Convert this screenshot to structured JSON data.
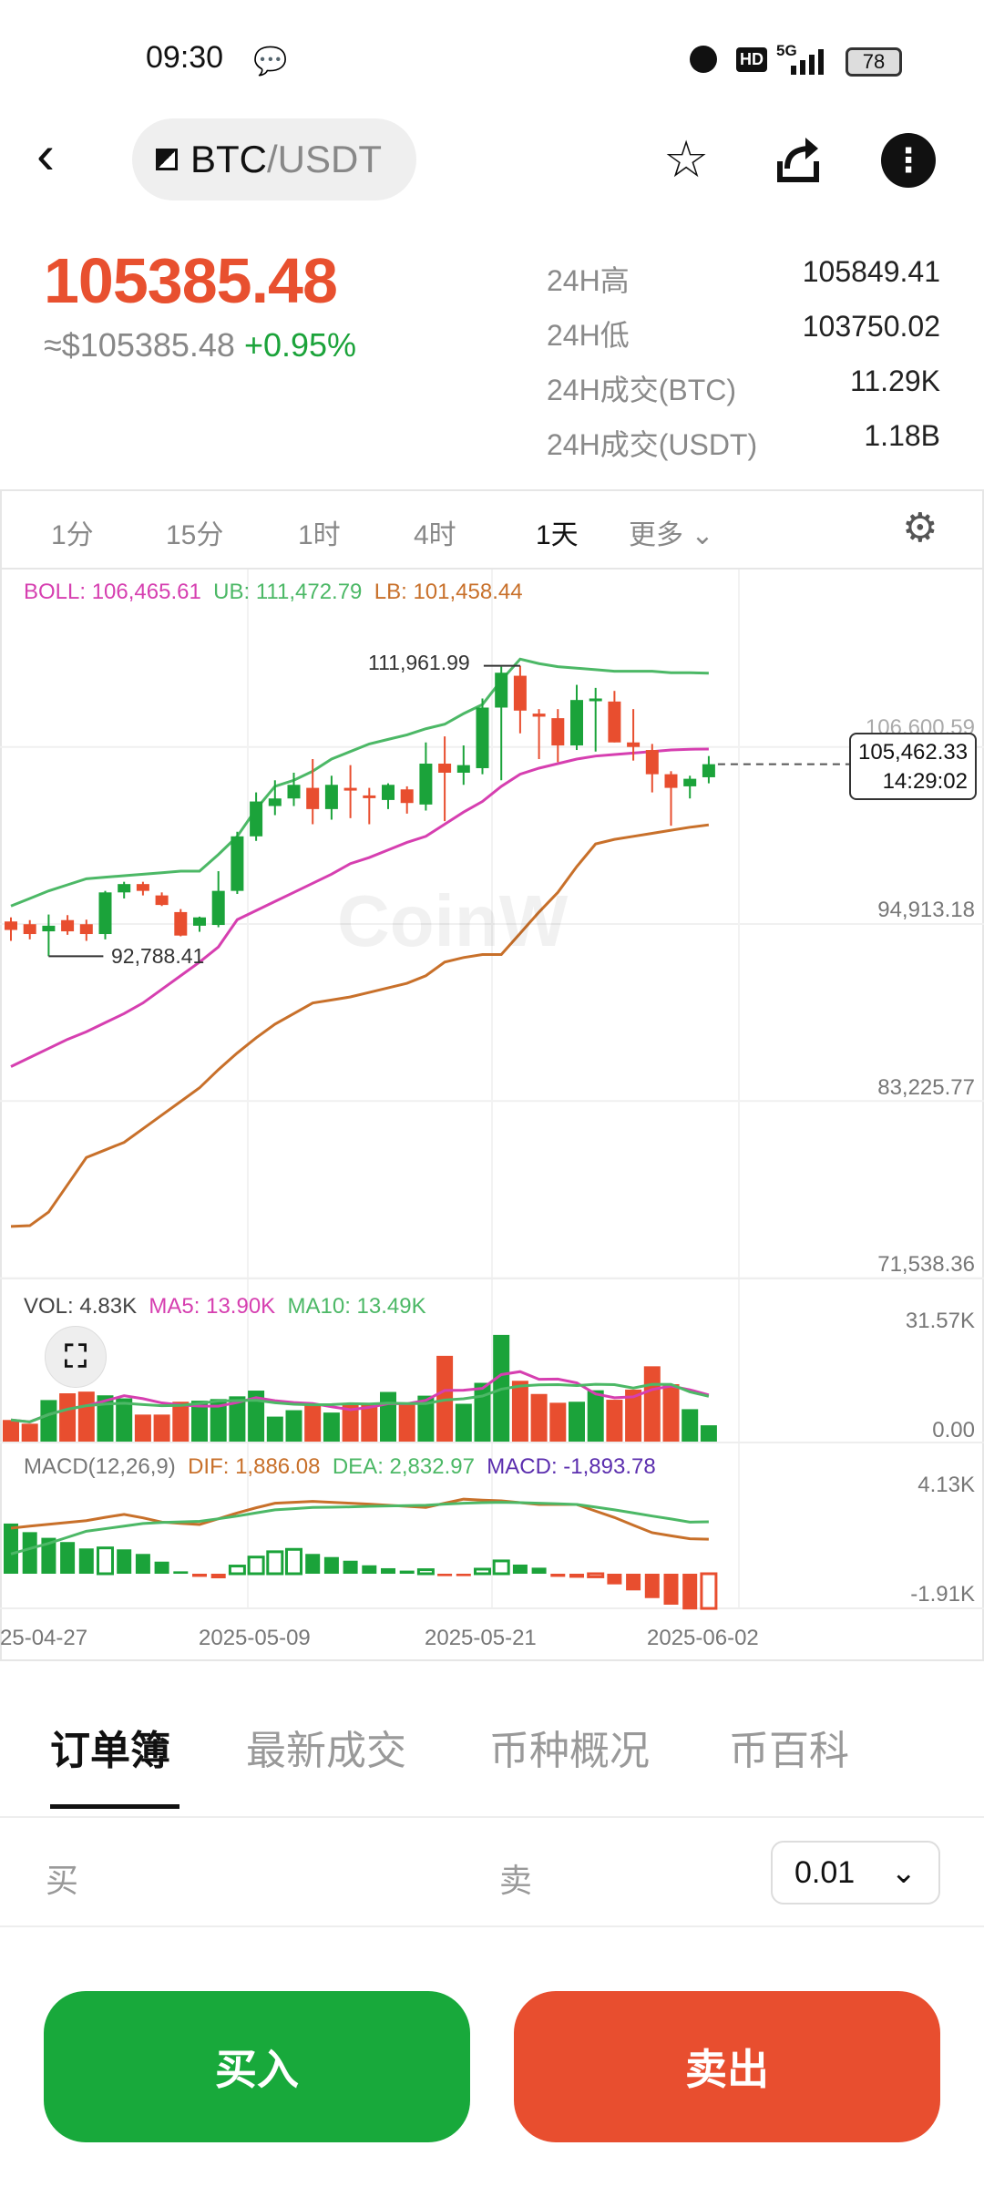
{
  "status_bar": {
    "time": "09:30",
    "battery": "78",
    "network": "5G",
    "hd": "HD"
  },
  "header": {
    "base": "BTC",
    "quote": "/USDT"
  },
  "ticker": {
    "price": "105385.48",
    "usd_price": "≈$105385.48",
    "change": "+0.95%",
    "stats": [
      {
        "label": "24H高",
        "value": "105849.41"
      },
      {
        "label": "24H低",
        "value": "103750.02"
      },
      {
        "label": "24H成交(BTC)",
        "value": "11.29K"
      },
      {
        "label": "24H成交(USDT)",
        "value": "1.18B"
      }
    ]
  },
  "timeframes": [
    "1分",
    "15分",
    "1时",
    "4时",
    "1天"
  ],
  "timeframe_active": "1天",
  "more_label": "更多",
  "colors": {
    "up": "#1ba33a",
    "down": "#e84e2f",
    "boll": "#d63fb0",
    "ub": "#4cb866",
    "lb": "#c8702a",
    "macd": "#5b2eae"
  },
  "watermark": "CoinW",
  "chart_data": {
    "type": "candlestick",
    "boll_legend": {
      "boll": "BOLL: 106,465.61",
      "ub": "UB: 111,472.79",
      "lb": "LB: 101,458.44"
    },
    "vol_legend": {
      "vol": "VOL: 4.83K",
      "ma5": "MA5: 13.90K",
      "ma10": "MA10: 13.49K"
    },
    "macd_legend": {
      "name": "MACD(12,26,9)",
      "dif": "DIF: 1,886.08",
      "dea": "DEA: 2,832.97",
      "macd": "MACD: -1,893.78"
    },
    "price_ticks": [
      "106,600.59",
      "94,913.18",
      "83,225.77",
      "71,538.36"
    ],
    "price_tick_values": [
      106600.59,
      94913.18,
      83225.77,
      71538.36
    ],
    "vol_ticks": [
      "31.57K",
      "0.00"
    ],
    "macd_ticks": [
      "4.13K",
      "-1.91K"
    ],
    "x_ticks": [
      "25-04-27",
      "2025-05-09",
      "2025-05-21",
      "2025-06-02"
    ],
    "max_label": "111,961.99",
    "min_label": "92,788.41",
    "last_price_label": "105,462.33",
    "countdown": "14:29:02",
    "last_price": 105462.33,
    "ohlc": [
      [
        95080,
        95350,
        93800,
        94520
      ],
      [
        94900,
        95170,
        93900,
        94250
      ],
      [
        94430,
        95540,
        92788.41,
        94800
      ],
      [
        95170,
        95500,
        94200,
        94430
      ],
      [
        94900,
        95200,
        93800,
        94250
      ],
      [
        94250,
        97100,
        93900,
        97000
      ],
      [
        97000,
        97700,
        96600,
        97550
      ],
      [
        97550,
        97700,
        96800,
        97100
      ],
      [
        96800,
        97000,
        96100,
        96170
      ],
      [
        95700,
        95900,
        94100,
        94150
      ],
      [
        94800,
        95400,
        94400,
        95350
      ],
      [
        94850,
        98400,
        94700,
        97100
      ],
      [
        97100,
        101000,
        96900,
        100700
      ],
      [
        100700,
        103600,
        100400,
        103000
      ],
      [
        102700,
        104400,
        102100,
        103200
      ],
      [
        103200,
        104900,
        102700,
        104100
      ],
      [
        103900,
        105800,
        101500,
        102500
      ],
      [
        102500,
        104700,
        101800,
        104100
      ],
      [
        103900,
        105400,
        101900,
        103800
      ],
      [
        103400,
        103900,
        101500,
        103350
      ],
      [
        103100,
        104200,
        102500,
        104100
      ],
      [
        103800,
        104000,
        102200,
        102900
      ],
      [
        102800,
        106900,
        102400,
        105500
      ],
      [
        105500,
        107300,
        101700,
        104900
      ],
      [
        104900,
        106700,
        104100,
        105400
      ],
      [
        105200,
        109800,
        104800,
        109200
      ],
      [
        109200,
        111900,
        104400,
        111500
      ],
      [
        111300,
        111961.99,
        107500,
        109000
      ],
      [
        108800,
        109100,
        105800,
        108600
      ],
      [
        108500,
        109100,
        105600,
        106700
      ],
      [
        106700,
        110700,
        106400,
        109700
      ],
      [
        109700,
        110500,
        106300,
        109800
      ],
      [
        109600,
        110300,
        106900,
        106900
      ],
      [
        106900,
        109100,
        105700,
        106600
      ],
      [
        106400,
        106800,
        103600,
        104800
      ],
      [
        104800,
        105000,
        101400,
        103900
      ],
      [
        104000,
        104700,
        103200,
        104500
      ],
      [
        104600,
        106000,
        104200,
        105462.33
      ]
    ],
    "boll_ub": [
      96100,
      96600,
      97100,
      97500,
      97900,
      98000,
      98100,
      98200,
      98300,
      98400,
      98400,
      99500,
      100700,
      102500,
      104000,
      104400,
      105000,
      105800,
      106300,
      106800,
      107100,
      107400,
      107800,
      108100,
      108800,
      109400,
      111000,
      112400,
      112100,
      111900,
      111800,
      111700,
      111600,
      111600,
      111600,
      111500,
      111500,
      111472.79
    ],
    "boll_mid": [
      85500,
      86100,
      86700,
      87300,
      87800,
      88400,
      89000,
      89700,
      90600,
      91500,
      92400,
      93400,
      95200,
      95800,
      96400,
      97000,
      97600,
      98200,
      98900,
      99300,
      99800,
      100300,
      100700,
      101500,
      102300,
      103000,
      104000,
      104800,
      105200,
      105500,
      105800,
      106000,
      106100,
      106200,
      106300,
      106400,
      106450,
      106465.61
    ],
    "boll_lb": [
      74950,
      75000,
      75900,
      77700,
      79500,
      80000,
      80500,
      81400,
      82300,
      83200,
      84100,
      85300,
      86400,
      87400,
      88300,
      89000,
      89700,
      89900,
      90100,
      90400,
      90700,
      91000,
      91500,
      92400,
      92700,
      92900,
      92900,
      94300,
      95700,
      97000,
      98700,
      100200,
      100500,
      100700,
      100900,
      101100,
      101300,
      101458.44
    ],
    "volume_k": [
      6.4,
      5.3,
      12.3,
      14.3,
      14.8,
      13.7,
      12.8,
      8.0,
      8.0,
      11.8,
      12.1,
      12.6,
      13.4,
      15.1,
      7.4,
      9.3,
      11.2,
      8.6,
      10.8,
      10.8,
      14.7,
      11.2,
      13.6,
      25.4,
      11.2,
      17.4,
      31.6,
      18.0,
      14.1,
      11.5,
      11.8,
      15.2,
      12.4,
      15.4,
      22.3,
      17.0,
      9.6,
      4.83
    ],
    "macd_hist": [
      2740,
      2270,
      1960,
      1730,
      1380,
      1410,
      1330,
      1080,
      660,
      130,
      -170,
      -250,
      420,
      910,
      1200,
      1330,
      1080,
      910,
      710,
      460,
      300,
      170,
      220,
      -130,
      -130,
      250,
      700,
      500,
      330,
      -170,
      -220,
      -170,
      -580,
      -910,
      -1330,
      -1690,
      -1950,
      -1893.78
    ],
    "dif": [
      2490,
      2600,
      2700,
      2800,
      2900,
      3080,
      3240,
      3050,
      2820,
      2750,
      2690,
      3000,
      3320,
      3600,
      3850,
      3900,
      3950,
      3900,
      3850,
      3800,
      3740,
      3680,
      3620,
      3850,
      4070,
      4020,
      3980,
      3880,
      3780,
      3780,
      3780,
      3420,
      3070,
      2650,
      2240,
      2070,
      1910,
      1886.08
    ],
    "dea": [
      1080,
      1370,
      1660,
      1990,
      2320,
      2460,
      2600,
      2740,
      2800,
      2830,
      2860,
      3000,
      3150,
      3320,
      3490,
      3550,
      3620,
      3630,
      3650,
      3680,
      3700,
      3720,
      3740,
      3800,
      3850,
      3880,
      3900,
      3880,
      3850,
      3820,
      3780,
      3640,
      3490,
      3320,
      3150,
      2990,
      2820,
      2832.97
    ]
  },
  "bottom_tabs": [
    "订单簿",
    "最新成交",
    "币种概况",
    "币百科"
  ],
  "orderbook": {
    "buy": "买",
    "sell": "卖",
    "precision": "0.01"
  },
  "actions": {
    "buy": "买入",
    "sell": "卖出"
  }
}
